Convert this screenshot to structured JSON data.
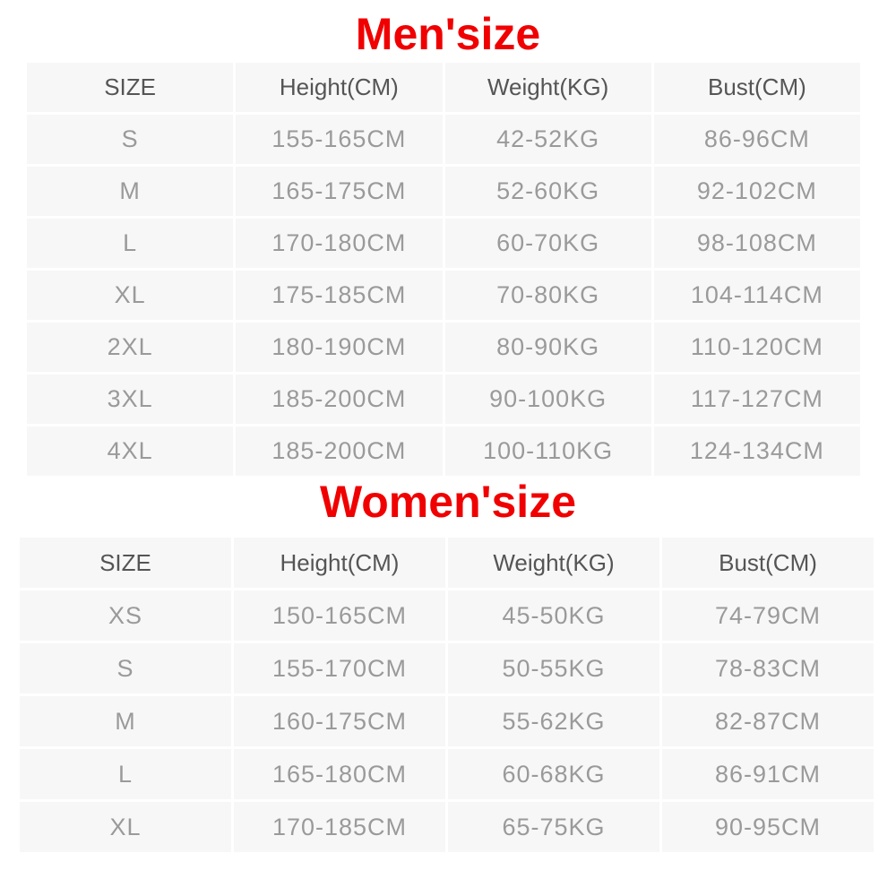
{
  "men": {
    "title": "Men'size",
    "headers": [
      "SIZE",
      "Height(CM)",
      "Weight(KG)",
      "Bust(CM)"
    ],
    "rows": [
      [
        "S",
        "155-165CM",
        "42-52KG",
        "86-96CM"
      ],
      [
        "M",
        "165-175CM",
        "52-60KG",
        "92-102CM"
      ],
      [
        "L",
        "170-180CM",
        "60-70KG",
        "98-108CM"
      ],
      [
        "XL",
        "175-185CM",
        "70-80KG",
        "104-114CM"
      ],
      [
        "2XL",
        "180-190CM",
        "80-90KG",
        "110-120CM"
      ],
      [
        "3XL",
        "185-200CM",
        "90-100KG",
        "117-127CM"
      ],
      [
        "4XL",
        "185-200CM",
        "100-110KG",
        "124-134CM"
      ]
    ]
  },
  "women": {
    "title": "Women'size",
    "headers": [
      "SIZE",
      "Height(CM)",
      "Weight(KG)",
      "Bust(CM)"
    ],
    "rows": [
      [
        "XS",
        "150-165CM",
        "45-50KG",
        "74-79CM"
      ],
      [
        "S",
        "155-170CM",
        "50-55KG",
        "78-83CM"
      ],
      [
        "M",
        "160-175CM",
        "55-62KG",
        "82-87CM"
      ],
      [
        "L",
        "165-180CM",
        "60-68KG",
        "86-91CM"
      ],
      [
        "XL",
        "170-185CM",
        "65-75KG",
        "90-95CM"
      ]
    ]
  },
  "colors": {
    "title": "#f00000",
    "cell": "#f7f7f7",
    "header_text": "#555555",
    "body_text": "#9a9a9a"
  }
}
